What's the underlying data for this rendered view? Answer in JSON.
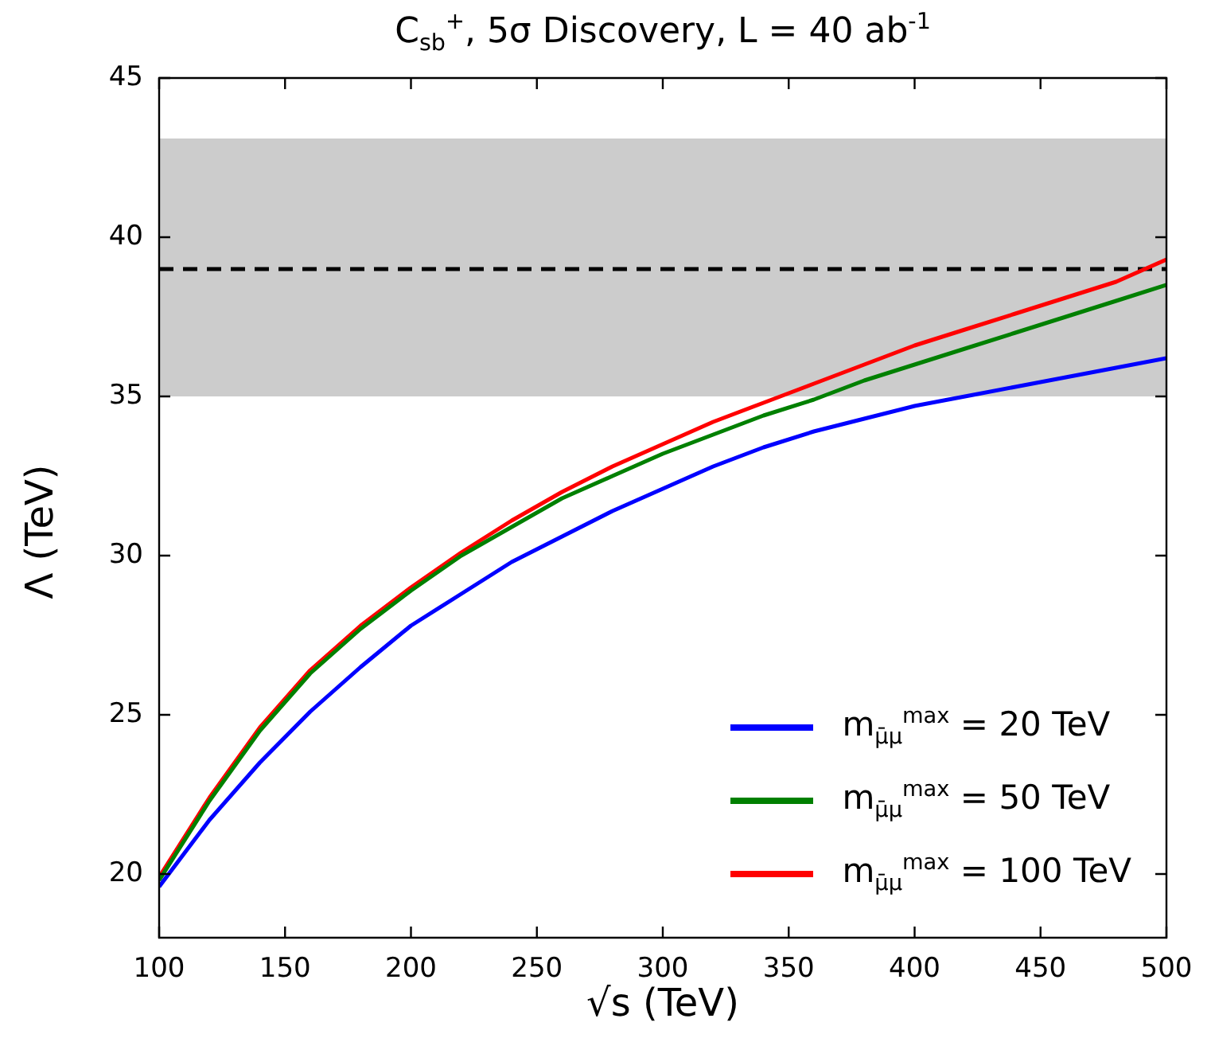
{
  "chart_data": {
    "type": "line",
    "title": "C$_{sb}$$^{+}$, 5σ Discovery, L = 40 ab$^{-1}$",
    "xlabel": "√s (TeV)",
    "ylabel": "Λ (TeV)",
    "x": [
      100,
      120,
      140,
      160,
      180,
      200,
      220,
      240,
      260,
      280,
      300,
      320,
      340,
      360,
      380,
      400,
      420,
      440,
      460,
      480,
      500
    ],
    "series": [
      {
        "name": "m$_{μ̄μ}$$^{max}$ = 20 TeV",
        "color": "#0000ff",
        "values": [
          19.6,
          21.7,
          23.5,
          25.1,
          26.5,
          27.8,
          28.8,
          29.8,
          30.6,
          31.4,
          32.1,
          32.8,
          33.4,
          33.9,
          34.3,
          34.7,
          35.0,
          35.3,
          35.6,
          35.9,
          36.2
        ]
      },
      {
        "name": "m$_{μ̄μ}$$^{max}$ = 50 TeV",
        "color": "#008000",
        "values": [
          19.8,
          22.3,
          24.5,
          26.3,
          27.7,
          28.9,
          30.0,
          30.9,
          31.8,
          32.5,
          33.2,
          33.8,
          34.4,
          34.9,
          35.5,
          36.0,
          36.5,
          37.0,
          37.5,
          38.0,
          38.5
        ]
      },
      {
        "name": "m$_{μ̄μ}$$^{max}$ = 100 TeV",
        "color": "#ff0000",
        "values": [
          19.9,
          22.4,
          24.6,
          26.4,
          27.8,
          29.0,
          30.1,
          31.1,
          32.0,
          32.8,
          33.5,
          34.2,
          34.8,
          35.4,
          36.0,
          36.6,
          37.1,
          37.6,
          38.1,
          38.6,
          39.3
        ]
      }
    ],
    "xlim": [
      100,
      500
    ],
    "xticks": [
      100,
      150,
      200,
      250,
      300,
      350,
      400,
      450,
      500
    ],
    "ylim": [
      18,
      45
    ],
    "yticks": [
      20,
      25,
      30,
      35,
      40,
      45
    ],
    "bands": [
      {
        "axis": "y",
        "from": 35,
        "to": 43.1,
        "color": "#cccccc"
      }
    ],
    "ref_lines": [
      {
        "axis": "y",
        "value": 39,
        "color": "#000000",
        "line_style": "dashed"
      }
    ],
    "grid": false,
    "legend": "bottom right",
    "marker": "none",
    "line_style": "solid"
  }
}
